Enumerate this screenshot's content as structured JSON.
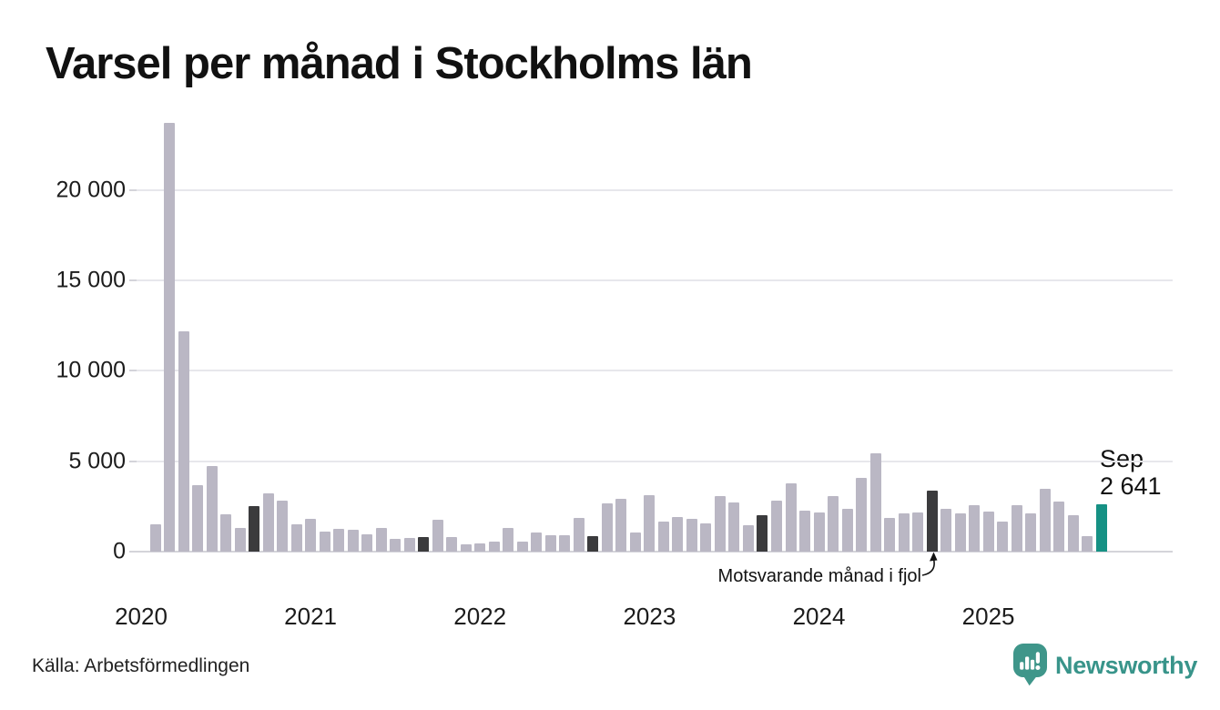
{
  "title": "Varsel per månad i Stockholms län",
  "source": "Källa: Arbetsförmedlingen",
  "brand": {
    "name": "Newsworthy",
    "color": "#38948a",
    "icon": "speech-bubble-bar-chart-icon"
  },
  "annotation": {
    "compare_label": "Motsvarande månad i fjol",
    "latest_month_label": "Sep",
    "latest_value_label": "2 641"
  },
  "colors": {
    "bar": "#bab7c4",
    "bar_dark": "#3b3b3d",
    "bar_accent": "#169184",
    "grid": "#e7e7ec",
    "baseline": "#d4d4da",
    "text": "#1a1a1a"
  },
  "chart_data": {
    "type": "bar",
    "title": "Varsel per månad i Stockholms län",
    "xlabel": "",
    "ylabel": "",
    "ylim": [
      0,
      23700
    ],
    "grid": true,
    "yticks": [
      0,
      5000,
      10000,
      15000,
      20000
    ],
    "ytick_labels": [
      "0",
      "5 000",
      "10 000",
      "15 000",
      "20 000"
    ],
    "year_labels": [
      "2020",
      "2021",
      "2022",
      "2023",
      "2024",
      "2025"
    ],
    "months": [
      "2020-02",
      "2020-03",
      "2020-04",
      "2020-05",
      "2020-06",
      "2020-07",
      "2020-08",
      "2020-09",
      "2020-10",
      "2020-11",
      "2020-12",
      "2021-01",
      "2021-02",
      "2021-03",
      "2021-04",
      "2021-05",
      "2021-06",
      "2021-07",
      "2021-08",
      "2021-09",
      "2021-10",
      "2021-11",
      "2021-12",
      "2022-01",
      "2022-02",
      "2022-03",
      "2022-04",
      "2022-05",
      "2022-06",
      "2022-07",
      "2022-08",
      "2022-09",
      "2022-10",
      "2022-11",
      "2022-12",
      "2023-01",
      "2023-02",
      "2023-03",
      "2023-04",
      "2023-05",
      "2023-06",
      "2023-07",
      "2023-08",
      "2023-09",
      "2023-10",
      "2023-11",
      "2023-12",
      "2024-01",
      "2024-02",
      "2024-03",
      "2024-04",
      "2024-05",
      "2024-06",
      "2024-07",
      "2024-08",
      "2024-09",
      "2024-10",
      "2024-11",
      "2024-12",
      "2025-01",
      "2025-02",
      "2025-03",
      "2025-04",
      "2025-05",
      "2025-06",
      "2025-07",
      "2025-08",
      "2025-09"
    ],
    "values": [
      1500,
      23700,
      12200,
      3700,
      4750,
      2050,
      1300,
      2500,
      3200,
      2800,
      1500,
      1800,
      1100,
      1250,
      1200,
      950,
      1300,
      700,
      750,
      790,
      1780,
      800,
      400,
      440,
      540,
      1300,
      570,
      1050,
      900,
      900,
      1850,
      880,
      2650,
      2900,
      1050,
      3100,
      1650,
      1900,
      1800,
      1550,
      3050,
      2700,
      1450,
      2040,
      2830,
      3800,
      2290,
      2150,
      3050,
      2350,
      4100,
      5450,
      1850,
      2100,
      2170,
      3400,
      2370,
      2100,
      2570,
      2200,
      1650,
      2550,
      2100,
      3500,
      2780,
      2040,
      860,
      2641
    ],
    "highlight_dark_months": [
      "2020-09",
      "2021-09",
      "2022-09",
      "2023-09",
      "2024-09"
    ],
    "highlight_accent_month": "2025-09",
    "legend": "none"
  }
}
